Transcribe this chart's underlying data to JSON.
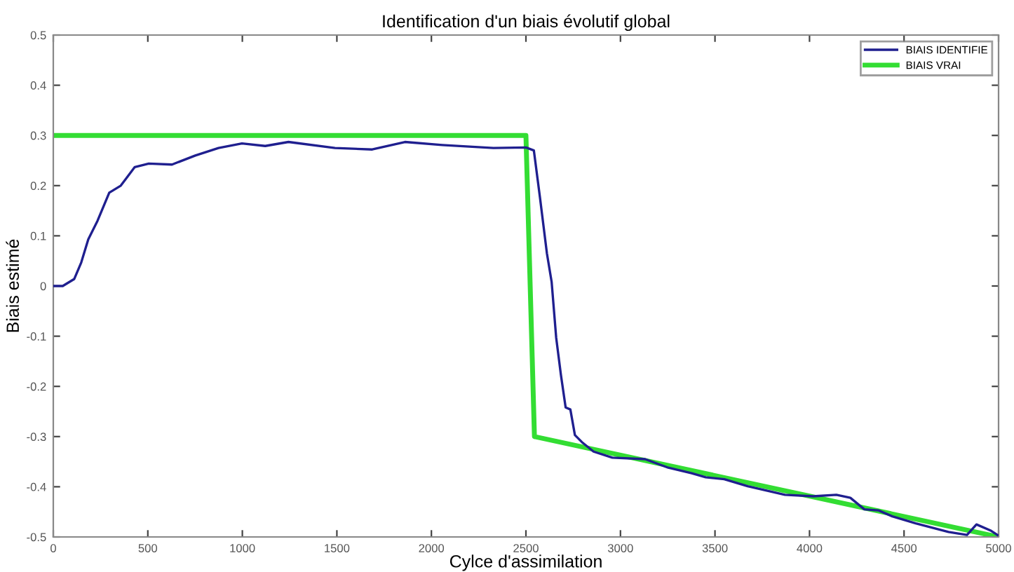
{
  "chart_data": {
    "type": "line",
    "title": "Identification d'un biais évolutif global",
    "xlabel": "Cylce d'assimilation",
    "ylabel": "Biais estimé",
    "xlim": [
      0,
      5000
    ],
    "ylim": [
      -0.5,
      0.5
    ],
    "xticks": [
      0,
      500,
      1000,
      1500,
      2000,
      2500,
      3000,
      3500,
      4000,
      4500,
      5000
    ],
    "yticks": [
      -0.5,
      -0.4,
      -0.3,
      -0.2,
      -0.1,
      0,
      0.1,
      0.2,
      0.3,
      0.4,
      0.5
    ],
    "grid": false,
    "legend": "top right",
    "series": [
      {
        "name": "BIAIS IDENTIFIE",
        "color": "#1f1f8f",
        "x": [
          0,
          50,
          111,
          148,
          185,
          234,
          296,
          357,
          431,
          505,
          628,
          751,
          874,
          998,
          1121,
          1244,
          1490,
          1687,
          1860,
          2057,
          2328,
          2500,
          2542,
          2574,
          2611,
          2636,
          2660,
          2685,
          2710,
          2735,
          2759,
          2796,
          2858,
          2957,
          3130,
          3253,
          3377,
          3451,
          3549,
          3673,
          3870,
          4019,
          4142,
          4216,
          4290,
          4364,
          4438,
          4562,
          4735,
          4833,
          4883,
          4957,
          4994
        ],
        "values": [
          0,
          0,
          0.014,
          0.047,
          0.093,
          0.13,
          0.186,
          0.2,
          0.237,
          0.244,
          0.242,
          0.26,
          0.275,
          0.284,
          0.279,
          0.287,
          0.275,
          0.272,
          0.287,
          0.281,
          0.275,
          0.276,
          0.27,
          0.177,
          0.065,
          0.008,
          -0.103,
          -0.177,
          -0.242,
          -0.246,
          -0.297,
          -0.311,
          -0.33,
          -0.342,
          -0.345,
          -0.362,
          -0.373,
          -0.381,
          -0.385,
          -0.399,
          -0.416,
          -0.419,
          -0.416,
          -0.422,
          -0.445,
          -0.447,
          -0.459,
          -0.473,
          -0.49,
          -0.496,
          -0.475,
          -0.487,
          -0.496
        ]
      },
      {
        "name": "BIAIS VRAI",
        "color": "#33dd33",
        "x": [
          0,
          2500,
          2545,
          5000
        ],
        "values": [
          0.3,
          0.3,
          -0.3,
          -0.5
        ]
      }
    ]
  }
}
